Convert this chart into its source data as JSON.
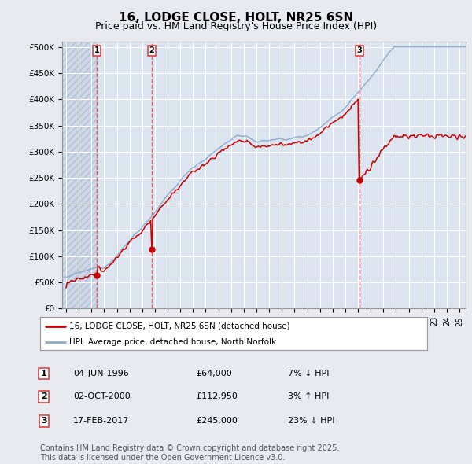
{
  "title1": "16, LODGE CLOSE, HOLT, NR25 6SN",
  "title2": "Price paid vs. HM Land Registry's House Price Index (HPI)",
  "legend1": "16, LODGE CLOSE, HOLT, NR25 6SN (detached house)",
  "legend2": "HPI: Average price, detached house, North Norfolk",
  "ylabel_ticks": [
    "£0",
    "£50K",
    "£100K",
    "£150K",
    "£200K",
    "£250K",
    "£300K",
    "£350K",
    "£400K",
    "£450K",
    "£500K"
  ],
  "ytick_values": [
    0,
    50000,
    100000,
    150000,
    200000,
    250000,
    300000,
    350000,
    400000,
    450000,
    500000
  ],
  "ylim": [
    0,
    510000
  ],
  "xlim_start": 1993.7,
  "xlim_end": 2025.5,
  "sale1": {
    "date": 1996.42,
    "price": 64000,
    "label": "1",
    "text": "04-JUN-1996",
    "amount": "£64,000",
    "hpi_rel": "7% ↓ HPI"
  },
  "sale2": {
    "date": 2000.75,
    "price": 112950,
    "label": "2",
    "text": "02-OCT-2000",
    "amount": "£112,950",
    "hpi_rel": "3% ↑ HPI"
  },
  "sale3": {
    "date": 2017.12,
    "price": 245000,
    "label": "3",
    "text": "17-FEB-2017",
    "amount": "£245,000",
    "hpi_rel": "23% ↓ HPI"
  },
  "line_color_property": "#cc0000",
  "line_color_hpi": "#88aacc",
  "vline_color": "#dd4444",
  "background_color": "#e8eaf0",
  "plot_bg": "#dce4f0",
  "hatch_bg": "#c8d4e8",
  "grid_color": "#ffffff",
  "footer": "Contains HM Land Registry data © Crown copyright and database right 2025.\nThis data is licensed under the Open Government Licence v3.0.",
  "footnote_fontsize": 7,
  "title_fontsize": 11,
  "subtitle_fontsize": 9
}
